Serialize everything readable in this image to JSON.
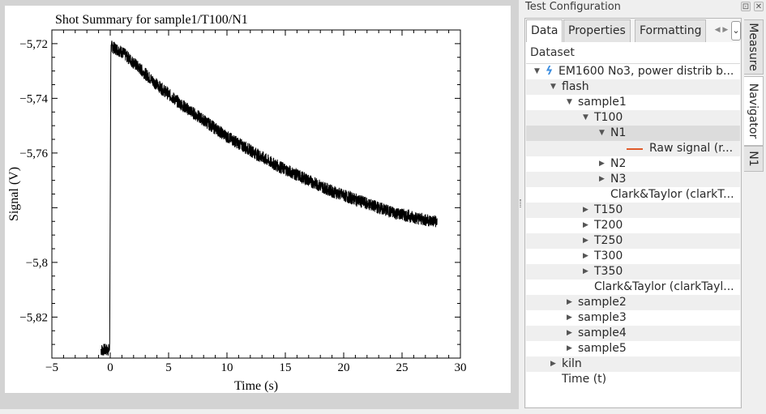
{
  "panel": {
    "title": "Test Configuration",
    "float_label": "⊡",
    "close_label": "✕"
  },
  "tabs": [
    {
      "label": "Data",
      "active": true
    },
    {
      "label": "Properties",
      "active": false
    },
    {
      "label": "Formatting",
      "active": false
    }
  ],
  "tab_scroll_label": "◀ ▶",
  "tab_more_label": "⌄",
  "side_tabs": [
    {
      "label": "Measure",
      "active": false
    },
    {
      "label": "Navigator",
      "active": true
    },
    {
      "label": "N1",
      "active": false
    }
  ],
  "tree": {
    "header": "Dataset",
    "rows": [
      {
        "label": "EM1600 No3, power distrib b...",
        "arrow": "▼",
        "icon": "bolt-icon",
        "level": 0
      },
      {
        "label": "flash",
        "arrow": "▼",
        "level": 1
      },
      {
        "label": "sample1",
        "arrow": "▼",
        "level": 2
      },
      {
        "label": "T100",
        "arrow": "▼",
        "level": 3
      },
      {
        "label": "N1",
        "arrow": "▼",
        "level": 4,
        "selected": true
      },
      {
        "label": "Raw signal (r...",
        "arrow": "",
        "icon": "line-swatch-icon",
        "level": 5
      },
      {
        "label": "N2",
        "arrow": "▶",
        "level": 4
      },
      {
        "label": "N3",
        "arrow": "▶",
        "level": 4
      },
      {
        "label": "Clark&Taylor (clarkT...",
        "arrow": "",
        "level": 4
      },
      {
        "label": "T150",
        "arrow": "▶",
        "level": 3
      },
      {
        "label": "T200",
        "arrow": "▶",
        "level": 3
      },
      {
        "label": "T250",
        "arrow": "▶",
        "level": 3
      },
      {
        "label": "T300",
        "arrow": "▶",
        "level": 3
      },
      {
        "label": "T350",
        "arrow": "▶",
        "level": 3
      },
      {
        "label": "Clark&Taylor (clarkTayl...",
        "arrow": "",
        "level": 3
      },
      {
        "label": "sample2",
        "arrow": "▶",
        "level": 2
      },
      {
        "label": "sample3",
        "arrow": "▶",
        "level": 2
      },
      {
        "label": "sample4",
        "arrow": "▶",
        "level": 2
      },
      {
        "label": "sample5",
        "arrow": "▶",
        "level": 2
      },
      {
        "label": "kiln",
        "arrow": "▶",
        "level": 1
      },
      {
        "label": "Time (t)",
        "arrow": "",
        "level": 1
      }
    ]
  },
  "colors": {
    "accent_bolt": "#3d8ee0",
    "raw_signal_line": "#e05a2a",
    "signal_trace": "#000000"
  },
  "chart_data": {
    "type": "line",
    "title": "Shot Summary for sample1/T100/N1",
    "xlabel": "Time (s)",
    "ylabel": "Signal (V)",
    "xlim": [
      -5,
      30
    ],
    "ylim": [
      -5.835,
      -5.715
    ],
    "xticks": [
      -5,
      0,
      5,
      10,
      15,
      20,
      25,
      30
    ],
    "xtick_labels": [
      "−5",
      "0",
      "5",
      "10",
      "15",
      "20",
      "25",
      "30"
    ],
    "yticks": [
      -5.72,
      -5.74,
      -5.76,
      -5.8,
      -5.82
    ],
    "ytick_labels": [
      "−5,72",
      "−5,74",
      "−5,76",
      "−5,8",
      "−5,82"
    ],
    "grid": false,
    "series": [
      {
        "name": "Raw signal",
        "x": [
          -0.8,
          -0.05,
          0.0,
          0.05,
          0.1,
          0.3,
          1.0,
          2.0,
          3.0,
          4.0,
          5.0,
          6.0,
          7.0,
          8.0,
          9.0,
          10.0,
          11.0,
          12.0,
          13.0,
          14.0,
          15.0,
          16.0,
          17.0,
          18.0,
          19.0,
          20.0,
          21.0,
          22.0,
          23.0,
          24.0,
          25.0,
          26.0,
          27.0,
          28.0
        ],
        "y": [
          -5.832,
          -5.832,
          -5.78,
          -5.722,
          -5.721,
          -5.7215,
          -5.723,
          -5.727,
          -5.731,
          -5.735,
          -5.7385,
          -5.742,
          -5.745,
          -5.748,
          -5.751,
          -5.754,
          -5.7565,
          -5.759,
          -5.7615,
          -5.764,
          -5.766,
          -5.768,
          -5.77,
          -5.772,
          -5.774,
          -5.7755,
          -5.777,
          -5.7785,
          -5.78,
          -5.7815,
          -5.7825,
          -5.7835,
          -5.7845,
          -5.785
        ]
      }
    ]
  }
}
